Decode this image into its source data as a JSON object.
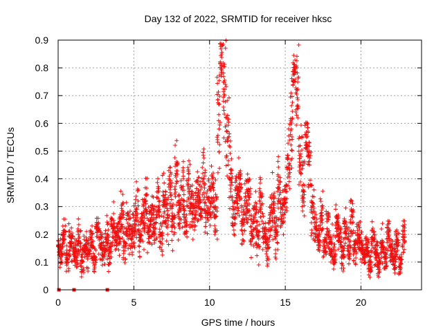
{
  "chart_data": {
    "type": "scatter",
    "title": "Day 132 of 2022, SRMTID for receiver hksc",
    "xlabel": "GPS time / hours",
    "ylabel": "SRMTID / TECUs",
    "xlim": [
      0,
      24
    ],
    "ylim": [
      0,
      0.9
    ],
    "xticks": [
      0,
      5,
      10,
      15,
      20
    ],
    "xtick_labels": [
      "0",
      "5",
      "10",
      "15",
      "20"
    ],
    "yticks": [
      0,
      0.1,
      0.2,
      0.3,
      0.4,
      0.5,
      0.6,
      0.7,
      0.8,
      0.9
    ],
    "ytick_labels": [
      "0",
      "0.1",
      "0.2",
      "0.3",
      "0.4",
      "0.5",
      "0.6",
      "0.7",
      "0.8",
      "0.9"
    ],
    "grid": true,
    "marker": "+",
    "color": "#ee1010",
    "series": [
      {
        "name": "SRMTID",
        "x": [
          0.0,
          0.2,
          0.4,
          0.6,
          0.8,
          1.0,
          1.2,
          1.4,
          1.6,
          1.8,
          2.0,
          2.2,
          2.4,
          2.6,
          2.8,
          3.0,
          3.2,
          3.4,
          3.6,
          3.8,
          4.0,
          4.2,
          4.4,
          4.6,
          4.8,
          5.0,
          5.2,
          5.4,
          5.6,
          5.8,
          6.0,
          6.2,
          6.4,
          6.6,
          6.8,
          7.0,
          7.2,
          7.4,
          7.6,
          7.8,
          8.0,
          8.2,
          8.4,
          8.6,
          8.8,
          9.0,
          9.2,
          9.4,
          9.6,
          9.8,
          10.0,
          10.2,
          10.4,
          10.6,
          10.8,
          11.0,
          11.2,
          11.4,
          11.6,
          11.8,
          12.0,
          12.2,
          12.4,
          12.6,
          12.8,
          13.0,
          13.2,
          13.4,
          13.6,
          13.8,
          14.0,
          14.2,
          14.4,
          14.6,
          14.8,
          15.0,
          15.2,
          15.4,
          15.6,
          15.8,
          16.0,
          16.2,
          16.4,
          16.6,
          16.8,
          17.0,
          17.2,
          17.4,
          17.6,
          17.8,
          18.0,
          18.2,
          18.4,
          18.6,
          18.8,
          19.0,
          19.2,
          19.4,
          19.6,
          19.8,
          20.0,
          20.2,
          20.4,
          20.6,
          20.8,
          21.0,
          21.2,
          21.4,
          21.6,
          21.8,
          22.0,
          22.2,
          22.4,
          22.6,
          22.8
        ],
        "y": [
          0.16,
          0.13,
          0.2,
          0.11,
          0.17,
          0.14,
          0.12,
          0.19,
          0.1,
          0.15,
          0.13,
          0.17,
          0.11,
          0.22,
          0.16,
          0.12,
          0.19,
          0.14,
          0.23,
          0.18,
          0.21,
          0.26,
          0.17,
          0.24,
          0.2,
          0.22,
          0.29,
          0.19,
          0.25,
          0.31,
          0.21,
          0.27,
          0.24,
          0.33,
          0.2,
          0.3,
          0.26,
          0.35,
          0.23,
          0.42,
          0.29,
          0.36,
          0.25,
          0.38,
          0.31,
          0.27,
          0.34,
          0.29,
          0.4,
          0.28,
          0.32,
          0.37,
          0.3,
          0.61,
          0.85,
          0.7,
          0.57,
          0.42,
          0.26,
          0.33,
          0.38,
          0.24,
          0.3,
          0.34,
          0.21,
          0.27,
          0.19,
          0.31,
          0.22,
          0.16,
          0.25,
          0.29,
          0.2,
          0.36,
          0.27,
          0.33,
          0.44,
          0.58,
          0.8,
          0.72,
          0.49,
          0.38,
          0.55,
          0.45,
          0.3,
          0.22,
          0.18,
          0.25,
          0.15,
          0.21,
          0.17,
          0.13,
          0.24,
          0.19,
          0.12,
          0.22,
          0.16,
          0.27,
          0.14,
          0.2,
          0.17,
          0.12,
          0.15,
          0.1,
          0.18,
          0.13,
          0.09,
          0.16,
          0.11,
          0.2,
          0.14,
          0.12,
          0.17,
          0.1,
          0.19
        ],
        "spread": [
          0.05,
          0.05,
          0.06,
          0.04,
          0.05,
          0.05,
          0.04,
          0.06,
          0.04,
          0.05,
          0.05,
          0.06,
          0.04,
          0.07,
          0.05,
          0.04,
          0.06,
          0.05,
          0.07,
          0.06,
          0.07,
          0.08,
          0.06,
          0.07,
          0.06,
          0.07,
          0.08,
          0.06,
          0.08,
          0.09,
          0.07,
          0.08,
          0.07,
          0.09,
          0.07,
          0.09,
          0.08,
          0.1,
          0.07,
          0.1,
          0.09,
          0.1,
          0.08,
          0.1,
          0.09,
          0.08,
          0.09,
          0.08,
          0.1,
          0.08,
          0.09,
          0.1,
          0.09,
          0.16,
          0.1,
          0.15,
          0.15,
          0.12,
          0.08,
          0.09,
          0.1,
          0.08,
          0.09,
          0.09,
          0.07,
          0.08,
          0.07,
          0.09,
          0.07,
          0.06,
          0.08,
          0.09,
          0.07,
          0.1,
          0.08,
          0.09,
          0.12,
          0.15,
          0.06,
          0.12,
          0.12,
          0.1,
          0.07,
          0.1,
          0.08,
          0.07,
          0.06,
          0.07,
          0.05,
          0.07,
          0.06,
          0.05,
          0.07,
          0.06,
          0.05,
          0.07,
          0.05,
          0.08,
          0.05,
          0.06,
          0.06,
          0.05,
          0.05,
          0.04,
          0.06,
          0.05,
          0.04,
          0.06,
          0.05,
          0.06,
          0.05,
          0.05,
          0.06,
          0.04,
          0.06
        ]
      }
    ],
    "zero_markers_x": [
      0.05,
      1.05,
      3.25
    ]
  }
}
